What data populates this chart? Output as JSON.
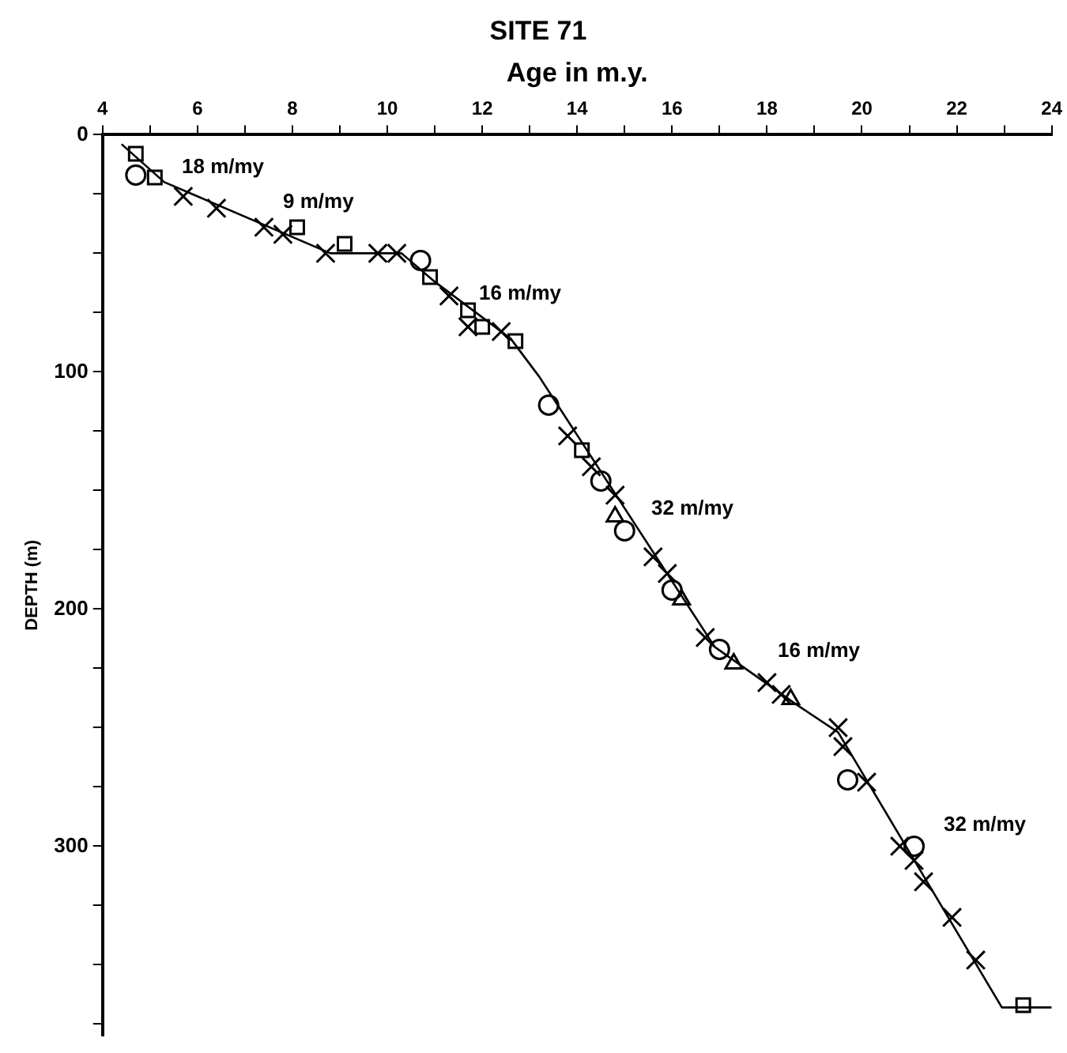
{
  "chart_data": {
    "type": "scatter",
    "title": "SITE 71",
    "xlabel": "Age in m.y.",
    "ylabel": "DEPTH (m)",
    "xlim": [
      4,
      24
    ],
    "xticks": [
      4,
      {
        "value": 5,
        "label": null
      },
      6,
      {
        "value": 7,
        "label": null
      },
      8,
      {
        "value": 9,
        "label": null
      },
      10,
      {
        "value": 11,
        "label": null
      },
      12,
      {
        "value": 13,
        "label": null
      },
      14,
      {
        "value": 15,
        "label": null
      },
      16,
      {
        "value": 17,
        "label": null
      },
      18,
      {
        "value": 19,
        "label": null
      },
      20,
      {
        "value": 21,
        "label": null
      },
      22,
      {
        "value": 23,
        "label": null
      },
      24
    ],
    "ylim": [
      380,
      0
    ],
    "yticks": [
      0,
      {
        "value": 25,
        "label": null
      },
      {
        "value": 50,
        "label": null
      },
      {
        "value": 75,
        "label": null
      },
      100,
      {
        "value": 125,
        "label": null
      },
      {
        "value": 150,
        "label": null
      },
      {
        "value": 175,
        "label": null
      },
      200,
      {
        "value": 225,
        "label": null
      },
      {
        "value": 250,
        "label": null
      },
      {
        "value": 275,
        "label": null
      },
      300,
      {
        "value": 325,
        "label": null
      },
      {
        "value": 350,
        "label": null
      },
      {
        "value": 375,
        "label": null
      }
    ],
    "grid": false,
    "legend": false,
    "series": [
      {
        "type": "line",
        "marker": "none",
        "color": "#000000",
        "x": [
          4.4,
          5.3,
          8.8,
          10.3,
          11.0,
          12.6,
          13.2,
          16.9,
          18.6,
          19.5,
          22.95,
          24
        ],
        "values": [
          4,
          20,
          50,
          50,
          62,
          86,
          102,
          216,
          240,
          252,
          368,
          368
        ]
      },
      {
        "type": "scatter",
        "marker": "cross",
        "color": "#000000",
        "x": [
          5.7,
          6.4,
          7.4,
          7.8,
          8.7,
          9.8,
          10.2,
          11.3,
          11.7,
          12.4,
          13.8,
          14.3,
          14.8,
          15.6,
          15.9,
          16.7,
          18.0,
          18.3,
          19.5,
          19.6,
          20.1,
          20.8,
          21.1,
          21.3,
          21.9,
          22.4
        ],
        "values": [
          26,
          31,
          39,
          42,
          50,
          50,
          50,
          68,
          81,
          83,
          127,
          140,
          152,
          178,
          185,
          212,
          231,
          236,
          250,
          258,
          273,
          300,
          306,
          315,
          330,
          348
        ]
      },
      {
        "type": "scatter",
        "marker": "square",
        "color": "#000000",
        "x": [
          4.7,
          5.1,
          8.1,
          9.1,
          10.9,
          11.7,
          12.0,
          12.7,
          14.1,
          23.4
        ],
        "values": [
          8,
          18,
          39,
          46,
          60,
          74,
          81,
          87,
          133,
          367
        ]
      },
      {
        "type": "scatter",
        "marker": "circle",
        "color": "#000000",
        "x": [
          4.7,
          10.7,
          13.4,
          14.5,
          15.0,
          16.0,
          17.0,
          19.7,
          21.1
        ],
        "values": [
          17,
          53,
          114,
          146,
          167,
          192,
          217,
          272,
          300
        ]
      },
      {
        "type": "scatter",
        "marker": "triangle",
        "color": "#000000",
        "x": [
          14.8,
          16.2,
          17.3,
          18.5
        ],
        "values": [
          161,
          196,
          223,
          238
        ]
      }
    ],
    "annotations": [
      "18 m/my",
      "9 m/my",
      "16 m/my",
      "32 m/my",
      "16 m/my",
      "32 m/my"
    ]
  }
}
